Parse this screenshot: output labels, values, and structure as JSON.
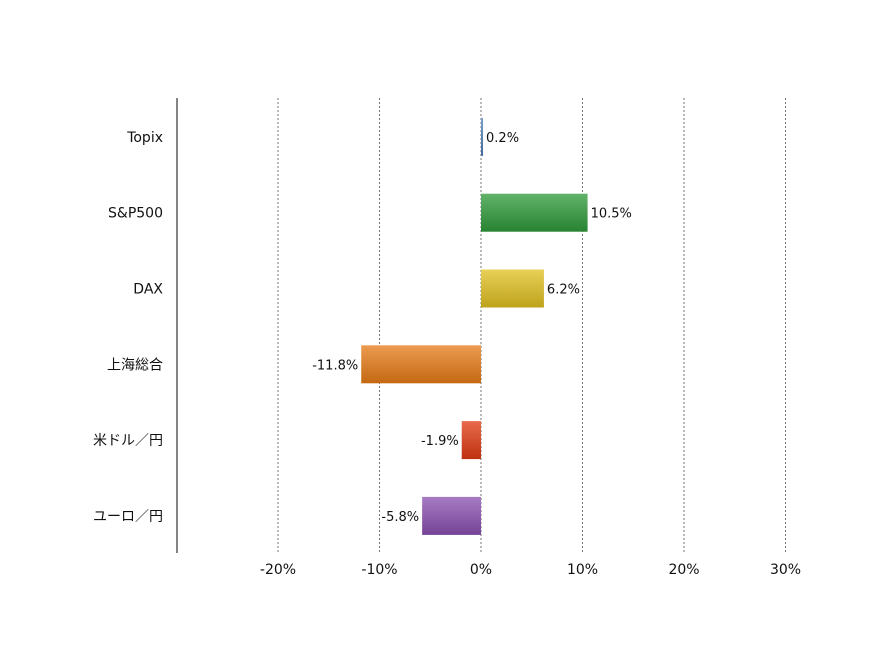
{
  "chart_data": {
    "type": "bar",
    "orientation": "horizontal",
    "categories": [
      "Topix",
      "S&P500",
      "DAX",
      "上海総合",
      "米ドル／円",
      "ユーロ／円"
    ],
    "values": [
      0.2,
      10.5,
      6.2,
      -11.8,
      -1.9,
      -5.8
    ],
    "value_labels": [
      "0.2%",
      "10.5%",
      "6.2%",
      "-11.8%",
      "-1.9%",
      "-5.8%"
    ],
    "colors": [
      "#4f7fb8",
      "#2e9a3a",
      "#e0c020",
      "#e67a15",
      "#e03a10",
      "#8a4fb0"
    ],
    "xlim": [
      -30,
      30
    ],
    "xticks": [
      -20,
      -10,
      0,
      10,
      20,
      30
    ],
    "xtick_labels": [
      "-20%",
      "-10%",
      "0%",
      "10%",
      "20%",
      "30%"
    ],
    "grid": "vertical dashed",
    "title": "",
    "xlabel": "",
    "ylabel": ""
  }
}
